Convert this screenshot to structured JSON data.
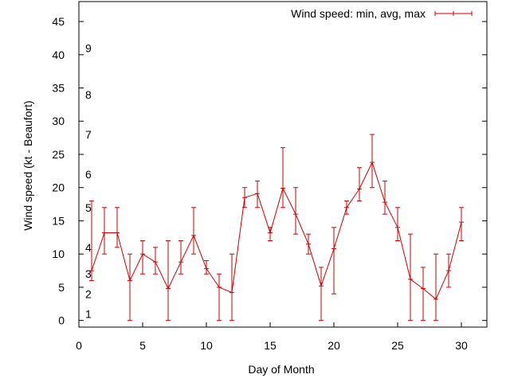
{
  "chart_data": {
    "type": "line",
    "title": "",
    "xlabel": "Day of Month",
    "ylabel": "Wind speed (kt - Beaufort)",
    "xlim": [
      0,
      32
    ],
    "ylim": [
      -1,
      48
    ],
    "x_ticks": [
      0,
      5,
      10,
      15,
      20,
      25,
      30
    ],
    "y_ticks": [
      0,
      5,
      10,
      15,
      20,
      25,
      30,
      35,
      40,
      45
    ],
    "beaufort_labels": [
      {
        "label": "1",
        "y": 1
      },
      {
        "label": "2",
        "y": 4
      },
      {
        "label": "3",
        "y": 7
      },
      {
        "label": "4",
        "y": 11
      },
      {
        "label": "5",
        "y": 17
      },
      {
        "label": "6",
        "y": 22
      },
      {
        "label": "7",
        "y": 28
      },
      {
        "label": "8",
        "y": 34
      },
      {
        "label": "9",
        "y": 41
      }
    ],
    "grid": false,
    "legend_position": "top-right",
    "series": [
      {
        "name": "Wind speed: min, avg, max",
        "color": "#cc0000",
        "points": [
          {
            "x": 1,
            "min": 6,
            "avg": 7.5,
            "max": 18
          },
          {
            "x": 2,
            "min": 10,
            "avg": 13.2,
            "max": 17
          },
          {
            "x": 3,
            "min": 11,
            "avg": 13.2,
            "max": 17
          },
          {
            "x": 4,
            "min": 0,
            "avg": 6,
            "max": 10
          },
          {
            "x": 5,
            "min": 7,
            "avg": 10,
            "max": 12
          },
          {
            "x": 6,
            "min": 7,
            "avg": 8.8,
            "max": 11
          },
          {
            "x": 7,
            "min": 0,
            "avg": 4.8,
            "max": 12
          },
          {
            "x": 8,
            "min": 7,
            "avg": 8.8,
            "max": 12
          },
          {
            "x": 9,
            "min": 10,
            "avg": 12.8,
            "max": 17
          },
          {
            "x": 10,
            "min": 7,
            "avg": 7.8,
            "max": 9
          },
          {
            "x": 11,
            "min": 0,
            "avg": 5,
            "max": 7
          },
          {
            "x": 12,
            "min": 0,
            "avg": 4.2,
            "max": 10
          },
          {
            "x": 13,
            "min": 17,
            "avg": 18.5,
            "max": 20
          },
          {
            "x": 14,
            "min": 17,
            "avg": 19.1,
            "max": 21
          },
          {
            "x": 15,
            "min": 12,
            "avg": 13.2,
            "max": 14
          },
          {
            "x": 16,
            "min": 17,
            "avg": 19.9,
            "max": 26
          },
          {
            "x": 17,
            "min": 13,
            "avg": 16,
            "max": 20
          },
          {
            "x": 18,
            "min": 10,
            "avg": 11.5,
            "max": 13
          },
          {
            "x": 19,
            "min": 0,
            "avg": 5.2,
            "max": 8
          },
          {
            "x": 20,
            "min": 4,
            "avg": 10.8,
            "max": 14
          },
          {
            "x": 21,
            "min": 16,
            "avg": 17,
            "max": 18
          },
          {
            "x": 22,
            "min": 18,
            "avg": 19.8,
            "max": 23
          },
          {
            "x": 23,
            "min": 20,
            "avg": 23.8,
            "max": 28
          },
          {
            "x": 24,
            "min": 16,
            "avg": 17.8,
            "max": 21
          },
          {
            "x": 25,
            "min": 12,
            "avg": 14,
            "max": 17
          },
          {
            "x": 26,
            "min": 0,
            "avg": 6.2,
            "max": 13
          },
          {
            "x": 27,
            "min": 0,
            "avg": 4.8,
            "max": 8
          },
          {
            "x": 28,
            "min": 0,
            "avg": 3.2,
            "max": 10
          },
          {
            "x": 29,
            "min": 5,
            "avg": 7.5,
            "max": 10
          },
          {
            "x": 30,
            "min": 12,
            "avg": 14.8,
            "max": 17
          }
        ]
      }
    ]
  }
}
